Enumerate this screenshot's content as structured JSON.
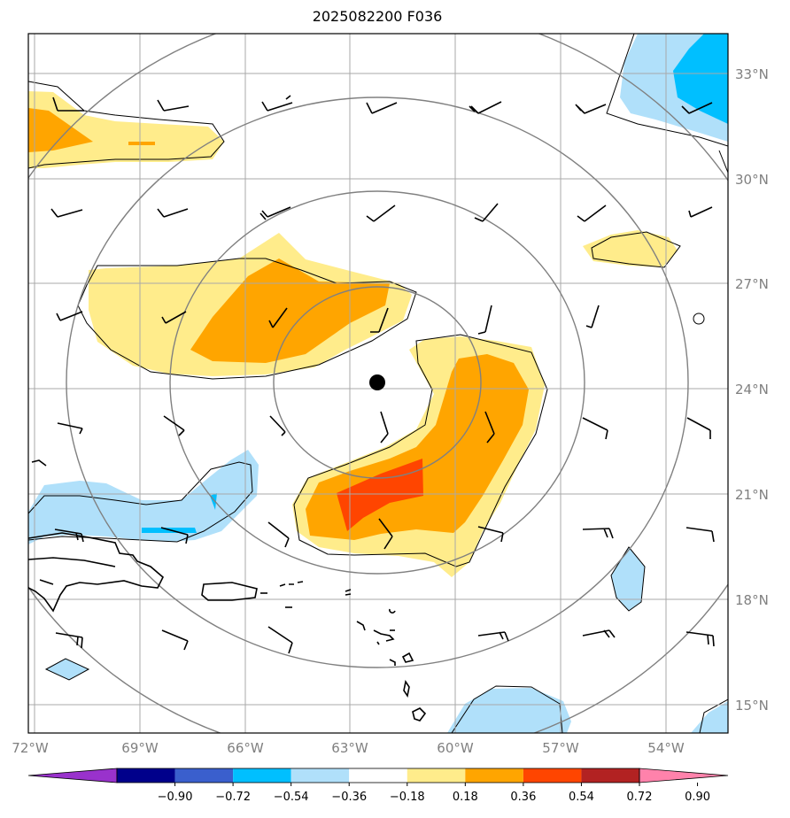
{
  "title": "2025082200 F036",
  "lat_labels": [
    "33°N",
    "30°N",
    "27°N",
    "24°N",
    "21°N",
    "18°N",
    "15°N"
  ],
  "lon_labels": [
    "72°W",
    "69°W",
    "66°W",
    "63°W",
    "60°W",
    "57°W",
    "54°W"
  ],
  "colorbar": {
    "labels": [
      "−0.90",
      "−0.72",
      "−0.54",
      "−0.36",
      "−0.18",
      "0.18",
      "0.36",
      "0.54",
      "0.72",
      "0.90"
    ],
    "colors": [
      "#9932cc",
      "#00008b",
      "#3a5fcd",
      "#00bfff",
      "#b0e0fa",
      "#ffffff",
      "#ffec8b",
      "#ffa500",
      "#ff4500",
      "#b22222",
      "#ff82ab"
    ]
  },
  "colors": {
    "grid": "#a9a9a9",
    "range_rings": "#808080",
    "coast": "#000000",
    "storm_center": "#000000"
  },
  "icons": {
    "storm_center": "storm-center-marker",
    "wind_barbs": "wind-barb-icon"
  }
}
